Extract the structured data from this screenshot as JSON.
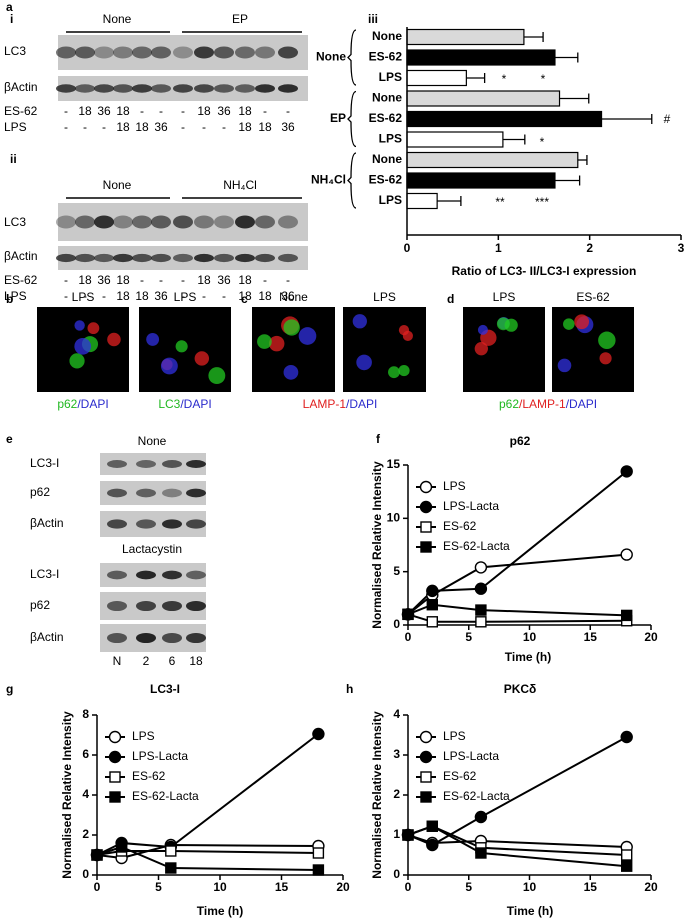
{
  "panel_labels": [
    "a",
    "b",
    "c",
    "d",
    "e",
    "f",
    "g",
    "h"
  ],
  "sub_labels": [
    "i",
    "ii",
    "iii"
  ],
  "blots_a": [
    {
      "headers": [
        "None",
        "EP"
      ],
      "rows": [
        "LC3",
        "βActin"
      ],
      "lane_rows": [
        {
          "name": "ES-62",
          "lanes": [
            "-",
            "18",
            "36",
            "18",
            "-",
            "-",
            "-",
            "18",
            "36",
            "18",
            "-",
            "-"
          ]
        },
        {
          "name": "LPS",
          "lanes": [
            "-",
            "-",
            "-",
            "18",
            "18",
            "36",
            "-",
            "-",
            "-",
            "18",
            "18",
            "36"
          ]
        }
      ]
    },
    {
      "headers": [
        "None",
        "NH₄Cl"
      ],
      "rows": [
        "LC3",
        "βActin"
      ],
      "lane_rows": [
        {
          "name": "ES-62",
          "lanes": [
            "-",
            "18",
            "36",
            "18",
            "-",
            "-",
            "-",
            "18",
            "36",
            "18",
            "-",
            "-"
          ]
        },
        {
          "name": "LPS",
          "lanes": [
            "-",
            "-",
            "-",
            "18",
            "18",
            "36",
            "-",
            "-",
            "-",
            "18",
            "18",
            "36"
          ]
        }
      ]
    }
  ],
  "microscopy": [
    {
      "images": [
        "LPS",
        "LPS"
      ],
      "captions": [
        [
          {
            "text": "p62",
            "color": "#22b822"
          },
          {
            "text": "/DAPI",
            "color": "#2a2acc"
          }
        ],
        [
          {
            "text": "LC3",
            "color": "#22b822"
          },
          {
            "text": "/DAPI",
            "color": "#2a2acc"
          }
        ]
      ]
    },
    {
      "images": [
        "None",
        "LPS"
      ],
      "captions": [
        [
          {
            "text": "LAMP-1",
            "color": "#e02020"
          },
          {
            "text": "/DAPI",
            "color": "#2a2acc"
          }
        ]
      ]
    },
    {
      "images": [
        "LPS",
        "ES-62"
      ],
      "captions": [
        [
          {
            "text": "p62",
            "color": "#22b822"
          },
          {
            "text": "/LAMP-1",
            "color": "#e02020"
          },
          {
            "text": "/DAPI",
            "color": "#2a2acc"
          }
        ]
      ]
    }
  ],
  "blots_e": {
    "headers": [
      "None",
      "Lactacystin"
    ],
    "rows": [
      "LC3-I",
      "p62",
      "βActin"
    ],
    "lanes": [
      "N",
      "2",
      "6",
      "18"
    ]
  },
  "chart_data": [
    {
      "type": "hbar",
      "xlabel": "Ratio of LC3- II/LC3-I expression",
      "xlim": [
        0,
        3
      ],
      "xticks": [
        0,
        1,
        2,
        3
      ],
      "bar_colors": [
        "#d9d9d9",
        "#000000",
        "#ffffff"
      ],
      "groups": [
        {
          "name": "None",
          "categories": [
            "None",
            "ES-62",
            "LPS"
          ],
          "values": [
            1.28,
            1.62,
            0.65
          ],
          "errors": [
            0.21,
            0.25,
            0.2
          ]
        },
        {
          "name": "EP",
          "categories": [
            "None",
            "ES-62",
            "LPS"
          ],
          "values": [
            1.67,
            2.13,
            1.05
          ],
          "errors": [
            0.32,
            0.55,
            0.24
          ]
        },
        {
          "name": "NH₄Cl",
          "categories": [
            "None",
            "ES-62",
            "LPS"
          ],
          "values": [
            1.87,
            1.62,
            0.33
          ],
          "errors": [
            0.1,
            0.27,
            0.26
          ]
        }
      ],
      "annotations": [
        {
          "text": "*",
          "color": "#e02020"
        },
        {
          "text": "*",
          "color": "#000000"
        },
        {
          "text": "#",
          "color": "#000000"
        },
        {
          "text": "*",
          "color": "#e02020"
        },
        {
          "text": "**",
          "color": "#e02020"
        },
        {
          "text": "***",
          "color": "#000000"
        }
      ]
    },
    {
      "type": "line",
      "title": "p62",
      "xlabel": "Time (h)",
      "ylabel": "Normalised Relative Intensity",
      "x": [
        0,
        2,
        6,
        18
      ],
      "xlim": [
        0,
        20
      ],
      "xticks": [
        0,
        5,
        10,
        15,
        20
      ],
      "ylim": [
        0,
        15
      ],
      "yticks": [
        0,
        5,
        10,
        15
      ],
      "legend": "upper left",
      "series": [
        {
          "name": "LPS",
          "color": "#000000",
          "marker": "circle",
          "filled": false,
          "values": [
            1,
            2.8,
            5.4,
            6.6
          ]
        },
        {
          "name": "LPS-Lacta",
          "color": "#000000",
          "marker": "circle",
          "filled": true,
          "values": [
            1,
            3.2,
            3.4,
            14.4
          ]
        },
        {
          "name": "ES-62",
          "color": "#000000",
          "marker": "square",
          "filled": false,
          "values": [
            1,
            0.3,
            0.3,
            0.4
          ]
        },
        {
          "name": "ES-62-Lacta",
          "color": "#000000",
          "marker": "square",
          "filled": true,
          "values": [
            1,
            1.9,
            1.4,
            0.9
          ]
        }
      ]
    },
    {
      "type": "line",
      "title": "LC3-I",
      "xlabel": "Time (h)",
      "ylabel": "Normalised Relative Intensity",
      "x": [
        0,
        2,
        6,
        18
      ],
      "xlim": [
        0,
        20
      ],
      "xticks": [
        0,
        5,
        10,
        15,
        20
      ],
      "ylim": [
        0,
        8
      ],
      "yticks": [
        0,
        2,
        4,
        6,
        8
      ],
      "legend": "upper left",
      "series": [
        {
          "name": "LPS",
          "color": "#000000",
          "marker": "circle",
          "filled": false,
          "values": [
            1,
            0.85,
            1.5,
            1.45
          ]
        },
        {
          "name": "LPS-Lacta",
          "color": "#000000",
          "marker": "circle",
          "filled": true,
          "values": [
            1,
            1.6,
            1.4,
            7.05
          ]
        },
        {
          "name": "ES-62",
          "color": "#000000",
          "marker": "square",
          "filled": false,
          "values": [
            1,
            1.2,
            1.2,
            1.1
          ]
        },
        {
          "name": "ES-62-Lacta",
          "color": "#000000",
          "marker": "square",
          "filled": true,
          "values": [
            1,
            1.4,
            0.35,
            0.25
          ]
        }
      ]
    },
    {
      "type": "line",
      "title": "PKCδ",
      "xlabel": "Time (h)",
      "ylabel": "Normalised Relative Intensity",
      "x": [
        0,
        2,
        6,
        18
      ],
      "xlim": [
        0,
        20
      ],
      "xticks": [
        0,
        5,
        10,
        15,
        20
      ],
      "ylim": [
        0,
        4
      ],
      "yticks": [
        0,
        1,
        2,
        3,
        4
      ],
      "legend": "upper left",
      "series": [
        {
          "name": "LPS",
          "color": "#000000",
          "marker": "circle",
          "filled": false,
          "values": [
            1,
            0.8,
            0.85,
            0.7
          ]
        },
        {
          "name": "LPS-Lacta",
          "color": "#000000",
          "marker": "circle",
          "filled": true,
          "values": [
            1,
            0.75,
            1.45,
            3.45
          ]
        },
        {
          "name": "ES-62",
          "color": "#000000",
          "marker": "square",
          "filled": false,
          "values": [
            1,
            1.22,
            0.68,
            0.5
          ]
        },
        {
          "name": "ES-62-Lacta",
          "color": "#000000",
          "marker": "square",
          "filled": true,
          "values": [
            1,
            1.22,
            0.55,
            0.22
          ]
        }
      ]
    }
  ]
}
